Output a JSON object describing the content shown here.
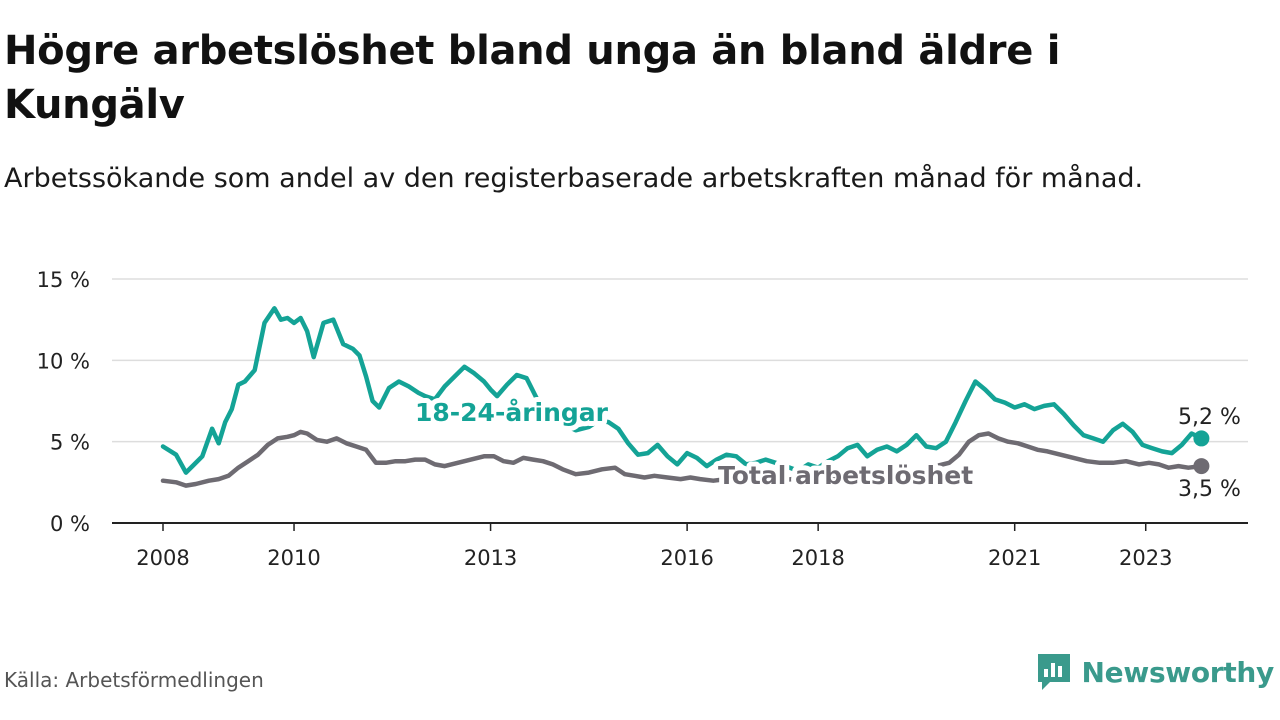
{
  "title": "Högre arbetslöshet bland unga än bland äldre i Kungälv",
  "subtitle": "Arbetssökande som andel av den registerbaserade arbetskraften månad för månad.",
  "source": "Källa: Arbetsförmedlingen",
  "brand": "Newsworthy",
  "colors": {
    "youth": "#14a396",
    "total": "#6e6b72",
    "grid": "#dddddd",
    "axis": "#222222",
    "brand": "#3a9a8c"
  },
  "chart_data": {
    "type": "line",
    "ylim": [
      0,
      15
    ],
    "yticks": [
      0,
      5,
      10,
      15
    ],
    "ytick_labels": [
      "0 %",
      "5 %",
      "10 %",
      "15 %"
    ],
    "xlim": [
      2008.0,
      2024.5
    ],
    "xticks": [
      2008,
      2010,
      2013,
      2016,
      2018,
      2021,
      2023
    ],
    "xtick_labels": [
      "2008",
      "2010",
      "2013",
      "2016",
      "2018",
      "2021",
      "2023"
    ],
    "series": [
      {
        "name": "18-24-åringar",
        "label": "18-24-åringar",
        "end_label": "5,2 %",
        "x": [
          2008.0,
          2008.2,
          2008.35,
          2008.45,
          2008.6,
          2008.75,
          2008.85,
          2008.95,
          2009.05,
          2009.15,
          2009.25,
          2009.4,
          2009.55,
          2009.7,
          2009.8,
          2009.9,
          2010.0,
          2010.1,
          2010.2,
          2010.3,
          2010.45,
          2010.6,
          2010.75,
          2010.9,
          2011.0,
          2011.1,
          2011.2,
          2011.3,
          2011.45,
          2011.6,
          2011.75,
          2011.9,
          2012.0,
          2012.15,
          2012.3,
          2012.45,
          2012.6,
          2012.75,
          2012.9,
          2013.0,
          2013.1,
          2013.25,
          2013.4,
          2013.55,
          2013.7,
          2013.85,
          2014.0,
          2014.15,
          2014.3,
          2014.5,
          2014.65,
          2014.8,
          2014.95,
          2015.1,
          2015.25,
          2015.4,
          2015.55,
          2015.7,
          2015.85,
          2016.0,
          2016.15,
          2016.3,
          2016.45,
          2016.6,
          2016.75,
          2016.9,
          2017.05,
          2017.2,
          2017.35,
          2017.5,
          2017.7,
          2017.85,
          2018.0,
          2018.15,
          2018.3,
          2018.45,
          2018.6,
          2018.75,
          2018.9,
          2019.05,
          2019.2,
          2019.35,
          2019.5,
          2019.65,
          2019.8,
          2019.95,
          2020.1,
          2020.25,
          2020.4,
          2020.55,
          2020.7,
          2020.85,
          2021.0,
          2021.15,
          2021.3,
          2021.45,
          2021.6,
          2021.75,
          2021.9,
          2022.05,
          2022.2,
          2022.35,
          2022.5,
          2022.65,
          2022.8,
          2022.95,
          2023.1,
          2023.25,
          2023.4,
          2023.55,
          2023.7,
          2023.85
        ],
        "values": [
          4.7,
          4.2,
          3.1,
          3.5,
          4.1,
          5.8,
          4.9,
          6.2,
          7.0,
          8.5,
          8.7,
          9.4,
          12.3,
          13.2,
          12.5,
          12.6,
          12.3,
          12.6,
          11.8,
          10.2,
          12.3,
          12.5,
          11.0,
          10.7,
          10.3,
          9.0,
          7.5,
          7.1,
          8.3,
          8.7,
          8.4,
          8.0,
          7.8,
          7.6,
          8.4,
          9.0,
          9.6,
          9.2,
          8.7,
          8.2,
          7.8,
          8.5,
          9.1,
          8.9,
          7.7,
          6.9,
          6.3,
          6.0,
          5.7,
          5.9,
          6.3,
          6.2,
          5.8,
          4.9,
          4.2,
          4.3,
          4.8,
          4.1,
          3.6,
          4.3,
          4.0,
          3.5,
          3.9,
          4.2,
          4.1,
          3.6,
          3.7,
          3.9,
          3.7,
          3.5,
          3.2,
          3.6,
          3.4,
          3.8,
          4.1,
          4.6,
          4.8,
          4.1,
          4.5,
          4.7,
          4.4,
          4.8,
          5.4,
          4.7,
          4.6,
          5.0,
          6.2,
          7.5,
          8.7,
          8.2,
          7.6,
          7.4,
          7.1,
          7.3,
          7.0,
          7.2,
          7.3,
          6.7,
          6.0,
          5.4,
          5.2,
          5.0,
          5.7,
          6.1,
          5.6,
          4.8,
          4.6,
          4.4,
          4.3,
          4.8,
          5.5,
          5.2
        ]
      },
      {
        "name": "Total arbetslöshet",
        "label": "Total arbetslöshet",
        "end_label": "3,5 %",
        "x": [
          2008.0,
          2008.2,
          2008.35,
          2008.5,
          2008.7,
          2008.85,
          2009.0,
          2009.15,
          2009.3,
          2009.45,
          2009.6,
          2009.75,
          2009.9,
          2010.0,
          2010.1,
          2010.2,
          2010.35,
          2010.5,
          2010.65,
          2010.8,
          2010.95,
          2011.1,
          2011.25,
          2011.4,
          2011.55,
          2011.7,
          2011.85,
          2012.0,
          2012.15,
          2012.3,
          2012.5,
          2012.7,
          2012.9,
          2013.05,
          2013.2,
          2013.35,
          2013.5,
          2013.65,
          2013.8,
          2013.95,
          2014.1,
          2014.3,
          2014.5,
          2014.7,
          2014.9,
          2015.05,
          2015.2,
          2015.35,
          2015.5,
          2015.7,
          2015.9,
          2016.05,
          2016.2,
          2016.4,
          2016.6,
          2016.8,
          2017.0,
          2017.2,
          2017.4,
          2017.6,
          2017.8,
          2018.0,
          2018.2,
          2018.4,
          2018.6,
          2018.8,
          2019.0,
          2019.2,
          2019.4,
          2019.6,
          2019.8,
          2020.0,
          2020.15,
          2020.3,
          2020.45,
          2020.6,
          2020.75,
          2020.9,
          2021.05,
          2021.2,
          2021.35,
          2021.5,
          2021.7,
          2021.9,
          2022.1,
          2022.3,
          2022.5,
          2022.7,
          2022.9,
          2023.05,
          2023.2,
          2023.35,
          2023.5,
          2023.65,
          2023.85
        ],
        "values": [
          2.6,
          2.5,
          2.3,
          2.4,
          2.6,
          2.7,
          2.9,
          3.4,
          3.8,
          4.2,
          4.8,
          5.2,
          5.3,
          5.4,
          5.6,
          5.5,
          5.1,
          5.0,
          5.2,
          4.9,
          4.7,
          4.5,
          3.7,
          3.7,
          3.8,
          3.8,
          3.9,
          3.9,
          3.6,
          3.5,
          3.7,
          3.9,
          4.1,
          4.1,
          3.8,
          3.7,
          4.0,
          3.9,
          3.8,
          3.6,
          3.3,
          3.0,
          3.1,
          3.3,
          3.4,
          3.0,
          2.9,
          2.8,
          2.9,
          2.8,
          2.7,
          2.8,
          2.7,
          2.6,
          2.7,
          2.6,
          2.6,
          2.7,
          2.6,
          2.7,
          2.6,
          2.6,
          2.7,
          2.6,
          2.7,
          2.8,
          2.9,
          3.0,
          3.1,
          3.3,
          3.5,
          3.7,
          4.2,
          5.0,
          5.4,
          5.5,
          5.2,
          5.0,
          4.9,
          4.7,
          4.5,
          4.4,
          4.2,
          4.0,
          3.8,
          3.7,
          3.7,
          3.8,
          3.6,
          3.7,
          3.6,
          3.4,
          3.5,
          3.4,
          3.5
        ]
      }
    ]
  }
}
